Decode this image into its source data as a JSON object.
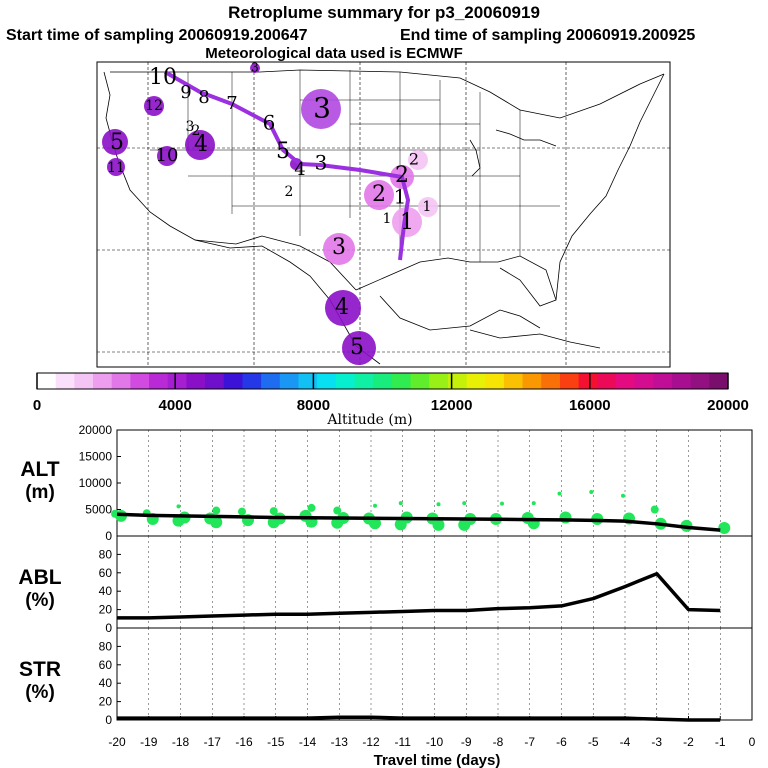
{
  "header": {
    "title": "Retroplume summary for p3_20060919",
    "start_label": "Start time of sampling 20060919.200647",
    "end_label": "End time of sampling 20060919.200925",
    "met_label": "Meteorological data used is ECMWF"
  },
  "colors": {
    "trajectory_line": "#9b30e0",
    "scatter_points": "#22e65a",
    "series_line": "#000000"
  },
  "chart_data": [
    {
      "type": "map",
      "name": "retroplume-map",
      "region": "contiguous United States, Mexico, Gulf of Mexico",
      "labels": [
        "10",
        "9",
        "8",
        "7",
        "6",
        "5",
        "4",
        "3",
        "2",
        "1",
        "12",
        "11",
        "5",
        "10",
        "4",
        "3",
        "2",
        "2",
        "2",
        "1",
        "1",
        "3",
        "4",
        "5",
        "3",
        "2",
        "1",
        "3"
      ],
      "colorbar": {
        "title": "Altitude (m)",
        "min": 0,
        "max": 20000,
        "tick_labels": [
          "0",
          "4000",
          "8000",
          "12000",
          "16000",
          "20000"
        ],
        "colors": [
          "#ffffff",
          "#fae0fa",
          "#f4c4f4",
          "#ee9eee",
          "#e277e8",
          "#d14be0",
          "#b92ad6",
          "#a51ed0",
          "#8a10c8",
          "#6f0fcc",
          "#3d12d8",
          "#2438e8",
          "#1e6cf0",
          "#1a96f4",
          "#12c0f4",
          "#06e0f0",
          "#06f0d0",
          "#0ff0a4",
          "#18ec7c",
          "#30ec50",
          "#60ee2c",
          "#98f016",
          "#c4f00a",
          "#e8f006",
          "#f8e404",
          "#fac002",
          "#fa9802",
          "#fa7008",
          "#fa4010",
          "#f41030",
          "#ec0a58",
          "#e40a80",
          "#d40c90",
          "#c00e96",
          "#a80e90",
          "#921080",
          "#7a0e6c"
        ]
      }
    },
    {
      "type": "line",
      "name": "ALT",
      "ylabel_lines": [
        "ALT",
        "(m)"
      ],
      "ylim": [
        0,
        20000
      ],
      "y_ticks": [
        0,
        5000,
        10000,
        15000,
        20000
      ],
      "y_tick_labels": [
        "0",
        "5000",
        "10000",
        "15000",
        "20000"
      ],
      "x": [
        -20,
        -19,
        -18,
        -17,
        -16,
        -15,
        -14,
        -13,
        -12,
        -11,
        -10,
        -9,
        -8,
        -7,
        -6,
        -5,
        -4,
        -3,
        -2,
        -1
      ],
      "series": [
        {
          "name": "mean altitude",
          "values": [
            4100,
            3900,
            3800,
            3700,
            3600,
            3500,
            3450,
            3400,
            3350,
            3300,
            3250,
            3200,
            3150,
            3100,
            3050,
            2950,
            2800,
            2300,
            1600,
            1100
          ]
        }
      ],
      "scatter": {
        "x": [
          -20,
          -20,
          -19,
          -19,
          -18,
          -18,
          -18,
          -17,
          -17,
          -17,
          -16,
          -16,
          -15,
          -15,
          -15,
          -14,
          -14,
          -14,
          -13,
          -13,
          -13,
          -12,
          -12,
          -12,
          -11,
          -11,
          -11,
          -10,
          -10,
          -10,
          -9,
          -9,
          -9,
          -8,
          -8,
          -7,
          -7,
          -7,
          -6,
          -6,
          -5,
          -5,
          -4,
          -4,
          -3,
          -3,
          -2,
          -1
        ],
        "y": [
          4200,
          3800,
          4300,
          3200,
          5600,
          3500,
          2900,
          4800,
          3300,
          2600,
          4600,
          3000,
          4700,
          3300,
          2600,
          5300,
          3800,
          2700,
          4800,
          3400,
          2500,
          5700,
          3300,
          2400,
          6200,
          3500,
          2200,
          6000,
          3300,
          2100,
          6200,
          3200,
          2100,
          6100,
          3200,
          6200,
          3400,
          2400,
          8000,
          3500,
          8300,
          3200,
          7600,
          3300,
          5000,
          2300,
          1900,
          1500
        ]
      }
    },
    {
      "type": "line",
      "name": "ABL",
      "ylabel_lines": [
        "ABL",
        "(%)"
      ],
      "ylim": [
        0,
        100
      ],
      "y_ticks": [
        0,
        20,
        40,
        60,
        80
      ],
      "y_tick_labels": [
        "0",
        "20",
        "40",
        "60",
        "80"
      ],
      "x": [
        -20,
        -19,
        -18,
        -17,
        -16,
        -15,
        -14,
        -13,
        -12,
        -11,
        -10,
        -9,
        -8,
        -7,
        -6,
        -5,
        -4,
        -3,
        -2,
        -1
      ],
      "series": [
        {
          "name": "fraction in ABL",
          "values": [
            11,
            11,
            12,
            13,
            14,
            15,
            15,
            16,
            17,
            18,
            19,
            19,
            21,
            22,
            24,
            32,
            45,
            59,
            20,
            19
          ]
        }
      ]
    },
    {
      "type": "line",
      "name": "STR",
      "ylabel_lines": [
        "STR",
        "(%)"
      ],
      "ylim": [
        0,
        100
      ],
      "y_ticks": [
        0,
        20,
        40,
        60,
        80
      ],
      "y_tick_labels": [
        "0",
        "20",
        "40",
        "60",
        "80"
      ],
      "x": [
        -20,
        -19,
        -18,
        -17,
        -16,
        -15,
        -14,
        -13,
        -12,
        -11,
        -10,
        -9,
        -8,
        -7,
        -6,
        -5,
        -4,
        -3,
        -2,
        -1
      ],
      "series": [
        {
          "name": "fraction in stratosphere",
          "values": [
            2,
            2,
            2,
            2,
            2,
            2,
            2,
            3,
            3,
            2,
            2,
            2,
            2,
            2,
            2,
            2,
            2,
            1,
            0,
            0
          ]
        }
      ]
    }
  ],
  "x_axis": {
    "xlim": [
      -20,
      0
    ],
    "tick_labels": [
      "-20",
      "-19",
      "-18",
      "-17",
      "-16",
      "-15",
      "-14",
      "-13",
      "-12",
      "-11",
      "-10",
      "-9",
      "-8",
      "-7",
      "-6",
      "-5",
      "-4",
      "-3",
      "-2",
      "-1",
      "0"
    ],
    "xlabel": "Travel time (days)"
  }
}
